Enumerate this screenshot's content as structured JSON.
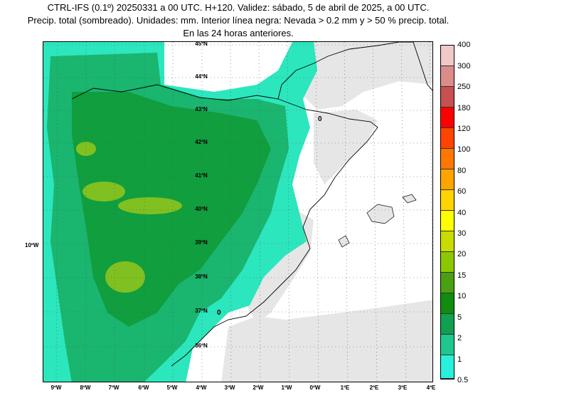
{
  "title": {
    "line1": "CTRL-IFS (0.1º) 20250331 a 00 UTC. H+120. Validez: sábado, 5 de abril de 2025, a 00 UTC.",
    "line2": "Precip. total (sombreado). Unidades: mm. Interior línea negra: Nevada > 0.2 mm y > 50 % precip. total.",
    "line3": "En las 24 horas anteriores."
  },
  "map": {
    "lat_labels": [
      "45ºN",
      "44ºN",
      "43ºN",
      "42ºN",
      "41ºN",
      "40ºN",
      "39ºN",
      "38ºN",
      "37ºN",
      "36ºN"
    ],
    "lon_labels": [
      "9ºW",
      "8ºW",
      "7ºW",
      "6ºW",
      "5ºW",
      "4ºW",
      "3ºW",
      "2ºW",
      "1ºW",
      "0ºW",
      "1ºE",
      "2ºE",
      "3ºE",
      "4ºE"
    ],
    "side_label": "10ºW",
    "snow_marker_label": "0",
    "colors": {
      "sea": "#ffffff",
      "dry_land": "#e6e6e6",
      "precip_light": "#2ce6bd",
      "precip_medium": "#1ab56f",
      "precip_heavy": "#109e3e",
      "precip_olive": "#80c020"
    }
  },
  "legend": {
    "labels": [
      "400",
      "300",
      "250",
      "180",
      "120",
      "100",
      "80",
      "60",
      "40",
      "30",
      "20",
      "15",
      "10",
      "5",
      "2",
      "1",
      "0.5"
    ],
    "colors": [
      "#f0c8c8",
      "#dd8c8c",
      "#c85050",
      "#ff0000",
      "#ff4400",
      "#ff7700",
      "#ffa500",
      "#ffd400",
      "#ffff00",
      "#c8dc00",
      "#8cc800",
      "#4aa010",
      "#108c10",
      "#10a050",
      "#1ec88c",
      "#28f0dc",
      "#b0e0e6"
    ]
  }
}
